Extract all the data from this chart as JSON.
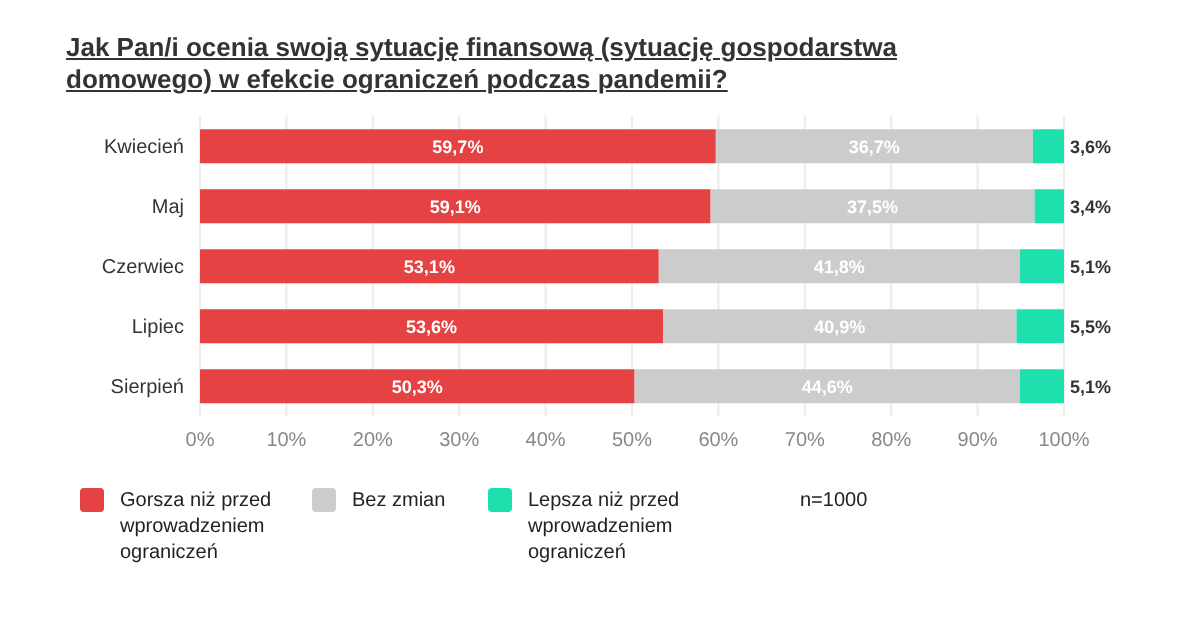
{
  "chart_data": {
    "type": "bar",
    "orientation": "horizontal",
    "stacked": true,
    "title": "Jak Pan/i ocenia swoją sytuację finansową (sytuację gospodarstwa domowego) w efekcie ograniczeń podczas pandemii?",
    "categories": [
      "Kwiecień",
      "Maj",
      "Czerwiec",
      "Lipiec",
      "Sierpień"
    ],
    "series": [
      {
        "name": "Gorsza niż przed wprowadzeniem ograniczeń",
        "color": "#e44243",
        "values": [
          59.7,
          59.1,
          53.1,
          53.6,
          50.3
        ],
        "value_labels": [
          "59,7%",
          "59,1%",
          "53,1%",
          "53,6%",
          "50,3%"
        ]
      },
      {
        "name": "Bez zmian",
        "color": "#cccccc",
        "values": [
          36.7,
          37.5,
          41.8,
          40.9,
          44.6
        ],
        "value_labels": [
          "36,7%",
          "37,5%",
          "41,8%",
          "40,9%",
          "44,6%"
        ]
      },
      {
        "name": "Lepsza niż przed wprowadzeniem ograniczeń",
        "color": "#1de0ae",
        "values": [
          3.6,
          3.4,
          5.1,
          5.5,
          5.1
        ],
        "value_labels": [
          "3,6%",
          "3,4%",
          "5,1%",
          "5,5%",
          "5,1%"
        ]
      }
    ],
    "xlim": [
      0,
      100
    ],
    "xticks": [
      {
        "value": 0,
        "label": "0%"
      },
      {
        "value": 10,
        "label": "10%"
      },
      {
        "value": 20,
        "label": "20%"
      },
      {
        "value": 30,
        "label": "30%"
      },
      {
        "value": 40,
        "label": "40%"
      },
      {
        "value": 50,
        "label": "50%"
      },
      {
        "value": 60,
        "label": "60%"
      },
      {
        "value": 70,
        "label": "70%"
      },
      {
        "value": 80,
        "label": "80%"
      },
      {
        "value": 90,
        "label": "90%"
      },
      {
        "value": 100,
        "label": "100%"
      }
    ],
    "grid": "x",
    "legend": "bottom left",
    "annotations": [
      "n=1000"
    ]
  }
}
